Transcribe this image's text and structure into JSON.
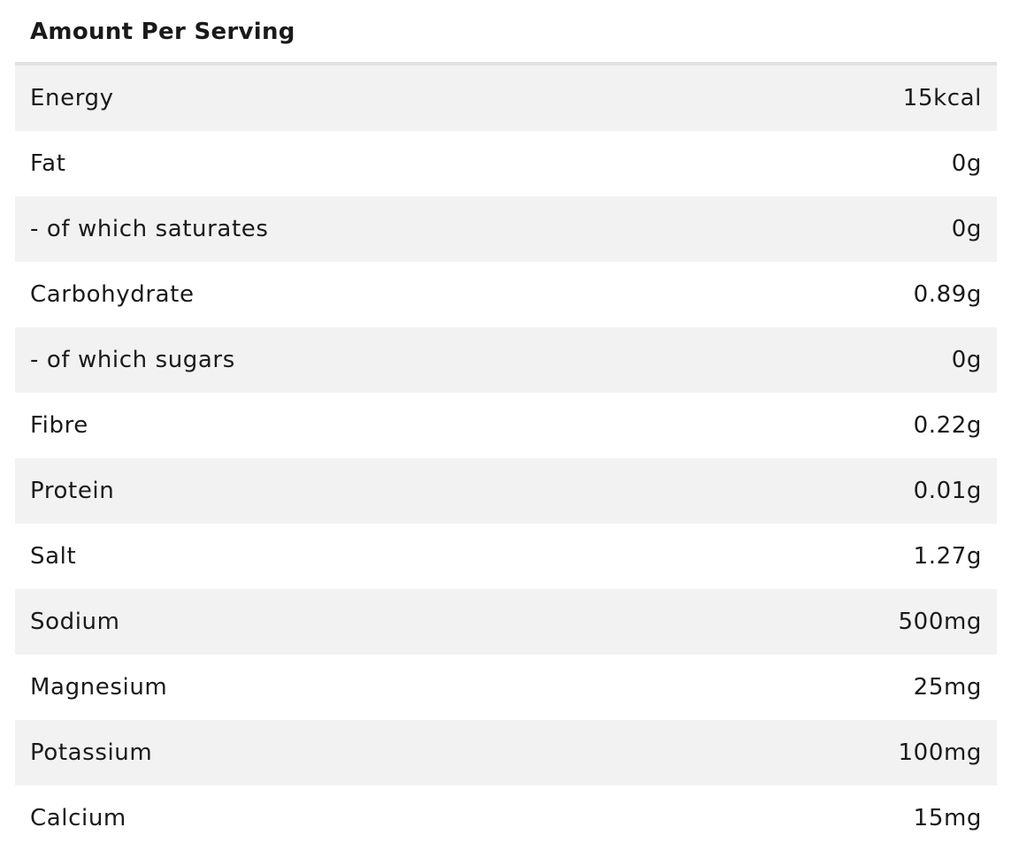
{
  "table": {
    "header": "Amount Per Serving",
    "rows": [
      {
        "label": "Energy",
        "value": "15kcal"
      },
      {
        "label": "Fat",
        "value": "0g"
      },
      {
        "label": "- of which saturates",
        "value": "0g"
      },
      {
        "label": "Carbohydrate",
        "value": "0.89g"
      },
      {
        "label": "- of which sugars",
        "value": "0g"
      },
      {
        "label": "Fibre",
        "value": "0.22g"
      },
      {
        "label": "Protein",
        "value": "0.01g"
      },
      {
        "label": "Salt",
        "value": "1.27g"
      },
      {
        "label": "Sodium",
        "value": "500mg"
      },
      {
        "label": "Magnesium",
        "value": "25mg"
      },
      {
        "label": "Potassium",
        "value": "100mg"
      },
      {
        "label": "Calcium",
        "value": "15mg"
      }
    ]
  },
  "colors": {
    "row_shaded": "#f2f2f2",
    "row_plain": "#ffffff",
    "header_rule": "#e0e0e0",
    "text": "#1a1a1a"
  }
}
